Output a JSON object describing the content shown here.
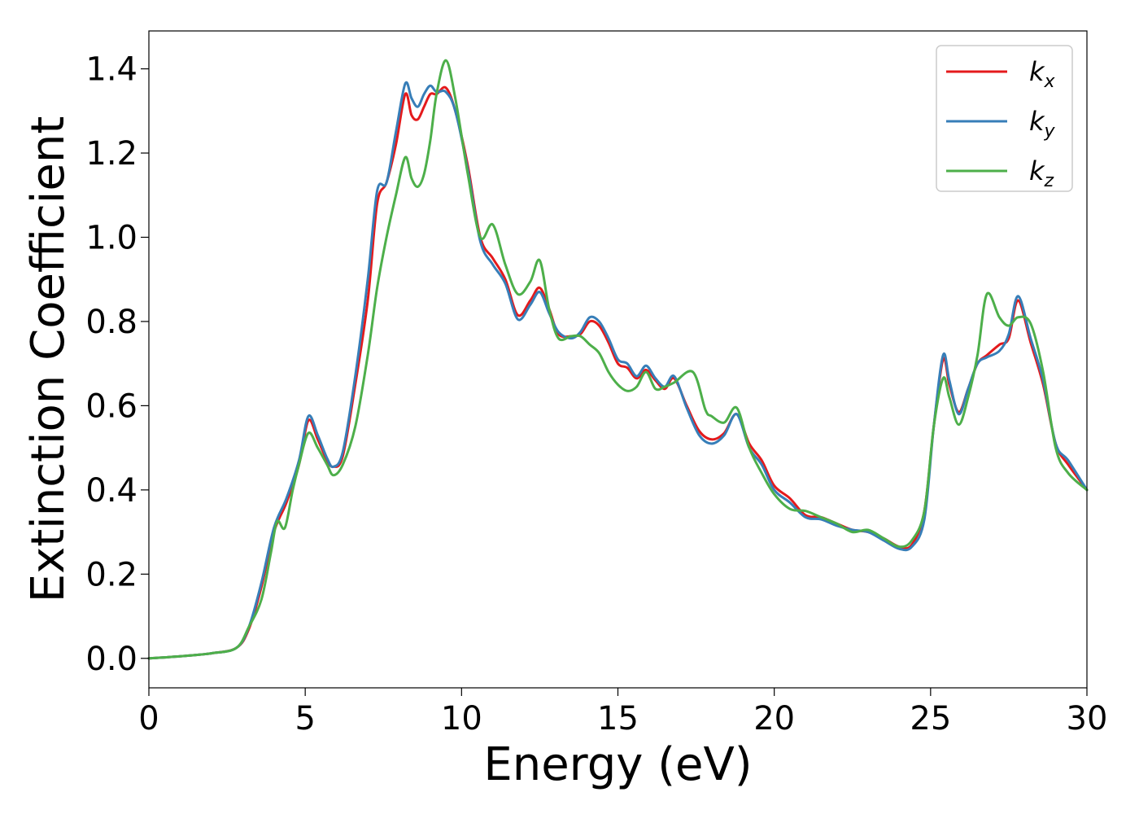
{
  "chart_data": {
    "type": "line",
    "xlabel": "Energy (eV)",
    "ylabel": "Extinction Coefficient",
    "xlim": [
      0,
      30
    ],
    "ylim": [
      -0.07,
      1.49
    ],
    "xticks": [
      0,
      5,
      10,
      15,
      20,
      25,
      30
    ],
    "yticks": [
      0.0,
      0.2,
      0.4,
      0.6,
      0.8,
      1.0,
      1.2,
      1.4
    ],
    "grid": false,
    "legend_position": "top-right",
    "series": [
      {
        "name": "k",
        "subscript": "x",
        "color": "#e41a1c",
        "x": [
          0,
          1,
          2,
          2.8,
          3.2,
          3.6,
          4.0,
          4.4,
          4.8,
          5.1,
          5.4,
          5.7,
          5.9,
          6.2,
          6.6,
          7.0,
          7.3,
          7.6,
          7.9,
          8.2,
          8.4,
          8.6,
          8.8,
          9.0,
          9.2,
          9.5,
          9.8,
          10.2,
          10.6,
          11.0,
          11.4,
          11.8,
          12.2,
          12.5,
          12.8,
          13.1,
          13.5,
          13.8,
          14.1,
          14.4,
          14.7,
          15.0,
          15.3,
          15.6,
          15.9,
          16.2,
          16.5,
          16.8,
          17.2,
          17.6,
          18.0,
          18.4,
          18.8,
          19.2,
          19.6,
          20.0,
          20.5,
          21.0,
          21.5,
          22.0,
          22.5,
          23.0,
          23.5,
          24.0,
          24.4,
          24.8,
          25.1,
          25.4,
          25.6,
          25.9,
          26.2,
          26.5,
          26.8,
          27.2,
          27.5,
          27.8,
          28.2,
          28.6,
          29.0,
          29.4,
          30.0
        ],
        "y": [
          0.0,
          0.005,
          0.012,
          0.025,
          0.07,
          0.17,
          0.3,
          0.37,
          0.46,
          0.565,
          0.52,
          0.47,
          0.455,
          0.48,
          0.65,
          0.85,
          1.08,
          1.13,
          1.22,
          1.34,
          1.29,
          1.28,
          1.31,
          1.34,
          1.34,
          1.355,
          1.3,
          1.17,
          1.0,
          0.95,
          0.9,
          0.815,
          0.85,
          0.88,
          0.83,
          0.77,
          0.765,
          0.77,
          0.8,
          0.79,
          0.75,
          0.7,
          0.69,
          0.665,
          0.685,
          0.66,
          0.64,
          0.665,
          0.6,
          0.54,
          0.52,
          0.535,
          0.58,
          0.51,
          0.47,
          0.41,
          0.38,
          0.34,
          0.335,
          0.32,
          0.305,
          0.3,
          0.285,
          0.265,
          0.27,
          0.35,
          0.55,
          0.71,
          0.65,
          0.585,
          0.64,
          0.7,
          0.72,
          0.745,
          0.76,
          0.85,
          0.75,
          0.65,
          0.51,
          0.46,
          0.4
        ]
      },
      {
        "name": "k",
        "subscript": "y",
        "color": "#377eb8",
        "x": [
          0,
          1,
          2,
          2.8,
          3.2,
          3.6,
          4.0,
          4.4,
          4.8,
          5.1,
          5.4,
          5.7,
          5.9,
          6.2,
          6.6,
          7.0,
          7.3,
          7.6,
          7.9,
          8.2,
          8.4,
          8.6,
          8.8,
          9.0,
          9.2,
          9.5,
          9.8,
          10.2,
          10.6,
          11.0,
          11.4,
          11.8,
          12.2,
          12.5,
          12.8,
          13.1,
          13.5,
          13.8,
          14.1,
          14.4,
          14.7,
          15.0,
          15.3,
          15.6,
          15.9,
          16.2,
          16.5,
          16.8,
          17.2,
          17.6,
          18.0,
          18.4,
          18.8,
          19.2,
          19.6,
          20.0,
          20.5,
          21.0,
          21.5,
          22.0,
          22.5,
          23.0,
          23.5,
          24.0,
          24.4,
          24.8,
          25.1,
          25.4,
          25.6,
          25.9,
          26.2,
          26.5,
          26.8,
          27.2,
          27.5,
          27.8,
          28.2,
          28.6,
          29.0,
          29.4,
          30.0
        ],
        "y": [
          0.0,
          0.005,
          0.012,
          0.025,
          0.075,
          0.18,
          0.31,
          0.38,
          0.47,
          0.575,
          0.53,
          0.475,
          0.455,
          0.49,
          0.67,
          0.9,
          1.11,
          1.13,
          1.25,
          1.365,
          1.33,
          1.31,
          1.34,
          1.36,
          1.345,
          1.345,
          1.3,
          1.16,
          0.99,
          0.935,
          0.89,
          0.805,
          0.84,
          0.87,
          0.82,
          0.775,
          0.76,
          0.775,
          0.81,
          0.8,
          0.76,
          0.71,
          0.7,
          0.67,
          0.695,
          0.665,
          0.645,
          0.67,
          0.595,
          0.53,
          0.51,
          0.53,
          0.58,
          0.5,
          0.46,
          0.4,
          0.37,
          0.335,
          0.33,
          0.315,
          0.305,
          0.3,
          0.28,
          0.26,
          0.265,
          0.33,
          0.55,
          0.72,
          0.66,
          0.58,
          0.64,
          0.7,
          0.715,
          0.73,
          0.77,
          0.86,
          0.76,
          0.66,
          0.51,
          0.47,
          0.4
        ]
      },
      {
        "name": "k",
        "subscript": "z",
        "color": "#4daf4a",
        "x": [
          0,
          1,
          2,
          2.8,
          3.2,
          3.6,
          3.9,
          4.1,
          4.35,
          4.6,
          4.8,
          5.1,
          5.4,
          5.7,
          5.9,
          6.2,
          6.6,
          7.0,
          7.3,
          7.6,
          7.9,
          8.2,
          8.4,
          8.6,
          8.8,
          9.0,
          9.2,
          9.5,
          9.8,
          10.2,
          10.6,
          11.0,
          11.4,
          11.8,
          12.2,
          12.5,
          12.8,
          13.1,
          13.5,
          13.8,
          14.1,
          14.4,
          14.7,
          15.0,
          15.3,
          15.6,
          15.9,
          16.2,
          16.5,
          16.8,
          17.4,
          17.8,
          18.0,
          18.4,
          18.8,
          19.2,
          19.6,
          20.0,
          20.5,
          21.0,
          21.5,
          22.0,
          22.5,
          23.0,
          23.5,
          24.0,
          24.4,
          24.8,
          25.1,
          25.4,
          25.6,
          25.9,
          26.2,
          26.5,
          26.8,
          27.2,
          27.5,
          27.8,
          28.2,
          28.6,
          29.0,
          29.4,
          30.0
        ],
        "y": [
          0.0,
          0.005,
          0.012,
          0.025,
          0.075,
          0.14,
          0.25,
          0.325,
          0.31,
          0.4,
          0.46,
          0.535,
          0.5,
          0.46,
          0.435,
          0.46,
          0.55,
          0.72,
          0.88,
          1.0,
          1.1,
          1.19,
          1.14,
          1.12,
          1.15,
          1.23,
          1.34,
          1.42,
          1.33,
          1.15,
          1.0,
          1.03,
          0.935,
          0.865,
          0.895,
          0.945,
          0.83,
          0.76,
          0.765,
          0.765,
          0.745,
          0.725,
          0.68,
          0.65,
          0.635,
          0.645,
          0.68,
          0.64,
          0.645,
          0.655,
          0.68,
          0.59,
          0.575,
          0.56,
          0.595,
          0.5,
          0.44,
          0.39,
          0.355,
          0.35,
          0.335,
          0.32,
          0.3,
          0.305,
          0.285,
          0.265,
          0.28,
          0.35,
          0.55,
          0.665,
          0.62,
          0.555,
          0.62,
          0.72,
          0.865,
          0.81,
          0.79,
          0.81,
          0.795,
          0.68,
          0.5,
          0.44,
          0.4
        ]
      }
    ]
  }
}
